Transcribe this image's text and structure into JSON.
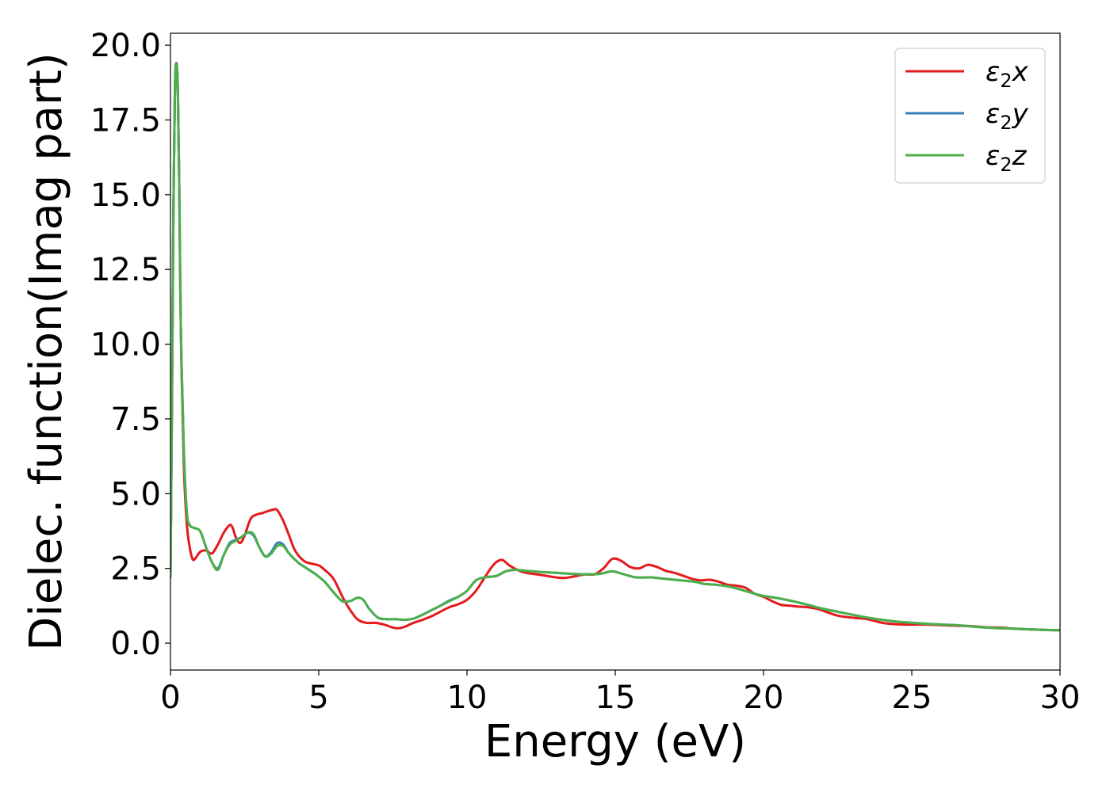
{
  "chart_data": {
    "type": "line",
    "title": "",
    "xlabel": "Energy (eV)",
    "ylabel": "Dielec. function(Imag part)",
    "xlim": [
      0,
      30
    ],
    "ylim": [
      -0.9,
      20.4
    ],
    "xticks": [
      0,
      5,
      10,
      15,
      20,
      25,
      30
    ],
    "xtick_labels": [
      "0",
      "5",
      "10",
      "15",
      "20",
      "25",
      "30"
    ],
    "yticks": [
      0.0,
      2.5,
      5.0,
      7.5,
      10.0,
      12.5,
      15.0,
      17.5,
      20.0
    ],
    "ytick_labels": [
      "0.0",
      "2.5",
      "5.0",
      "7.5",
      "10.0",
      "12.5",
      "15.0",
      "17.5",
      "20.0"
    ],
    "grid": false,
    "legend_position": "top-right",
    "series": [
      {
        "name": "ε₂x",
        "legend_base": "ε",
        "legend_sub": "2",
        "legend_suffix": "x",
        "color": "#e41a1c",
        "x": [
          0.0,
          0.05,
          0.1,
          0.15,
          0.2,
          0.25,
          0.3,
          0.35,
          0.45,
          0.55,
          0.65,
          0.75,
          0.85,
          1.0,
          1.2,
          1.4,
          1.6,
          1.8,
          2.0,
          2.1,
          2.2,
          2.35,
          2.5,
          2.7,
          2.9,
          3.1,
          3.3,
          3.5,
          3.6,
          3.8,
          4.0,
          4.2,
          4.5,
          4.8,
          5.0,
          5.2,
          5.5,
          5.8,
          6.0,
          6.3,
          6.6,
          6.9,
          7.2,
          7.5,
          7.7,
          7.9,
          8.2,
          8.5,
          8.8,
          9.1,
          9.4,
          9.7,
          10.0,
          10.3,
          10.6,
          10.8,
          11.0,
          11.2,
          11.4,
          11.7,
          12.0,
          12.5,
          13.0,
          13.3,
          13.7,
          14.0,
          14.3,
          14.6,
          14.9,
          15.2,
          15.5,
          15.8,
          16.1,
          16.4,
          16.7,
          17.0,
          17.3,
          17.6,
          17.9,
          18.2,
          18.5,
          18.8,
          19.1,
          19.4,
          19.7,
          20.0,
          20.3,
          20.6,
          20.9,
          21.2,
          21.5,
          21.8,
          22.1,
          22.5,
          23.0,
          23.5,
          24.0,
          24.5,
          25.0,
          25.5,
          26.0,
          26.5,
          27.0,
          27.5,
          28.0,
          28.5,
          29.0,
          29.5,
          30.0
        ],
        "y": [
          2.2,
          8.0,
          14.5,
          18.5,
          19.4,
          18.5,
          15.0,
          10.5,
          6.0,
          4.0,
          3.2,
          2.8,
          2.85,
          3.05,
          3.1,
          3.0,
          3.3,
          3.7,
          3.95,
          3.85,
          3.55,
          3.35,
          3.6,
          4.15,
          4.3,
          4.35,
          4.42,
          4.47,
          4.45,
          4.1,
          3.6,
          3.1,
          2.75,
          2.65,
          2.6,
          2.45,
          2.15,
          1.55,
          1.2,
          0.8,
          0.68,
          0.68,
          0.62,
          0.52,
          0.5,
          0.55,
          0.68,
          0.78,
          0.9,
          1.05,
          1.2,
          1.3,
          1.45,
          1.75,
          2.2,
          2.5,
          2.72,
          2.78,
          2.62,
          2.45,
          2.35,
          2.28,
          2.2,
          2.18,
          2.25,
          2.3,
          2.3,
          2.5,
          2.82,
          2.75,
          2.55,
          2.5,
          2.62,
          2.55,
          2.42,
          2.35,
          2.25,
          2.15,
          2.1,
          2.12,
          2.05,
          1.95,
          1.92,
          1.85,
          1.65,
          1.55,
          1.4,
          1.28,
          1.25,
          1.22,
          1.2,
          1.15,
          1.05,
          0.92,
          0.85,
          0.8,
          0.68,
          0.63,
          0.62,
          0.62,
          0.6,
          0.58,
          0.57,
          0.53,
          0.52,
          0.48,
          0.46,
          0.44,
          0.43
        ]
      },
      {
        "name": "ε₂y",
        "legend_base": "ε",
        "legend_sub": "2",
        "legend_suffix": "y",
        "color": "#377eb8",
        "x": [
          0.0,
          0.05,
          0.1,
          0.15,
          0.2,
          0.25,
          0.3,
          0.35,
          0.45,
          0.55,
          0.65,
          0.8,
          1.0,
          1.2,
          1.4,
          1.6,
          1.8,
          2.0,
          2.2,
          2.4,
          2.6,
          2.8,
          3.0,
          3.2,
          3.4,
          3.6,
          3.8,
          4.0,
          4.3,
          4.6,
          4.9,
          5.2,
          5.5,
          5.8,
          6.1,
          6.3,
          6.5,
          6.7,
          7.0,
          7.3,
          7.6,
          7.9,
          8.2,
          8.5,
          8.8,
          9.1,
          9.4,
          9.7,
          10.0,
          10.3,
          10.6,
          11.0,
          11.3,
          11.6,
          12.0,
          12.5,
          13.0,
          13.5,
          14.0,
          14.5,
          14.9,
          15.3,
          15.7,
          16.2,
          16.7,
          17.2,
          17.7,
          18.0,
          18.4,
          18.8,
          19.2,
          19.6,
          20.0,
          20.5,
          21.0,
          21.5,
          22.0,
          22.5,
          23.0,
          23.5,
          24.0,
          24.5,
          25.0,
          25.5,
          26.0,
          26.5,
          27.0,
          27.5,
          28.0,
          28.5,
          29.0,
          29.5,
          30.0
        ],
        "y": [
          2.2,
          8.0,
          14.5,
          18.5,
          19.4,
          18.5,
          15.0,
          10.5,
          6.5,
          4.4,
          3.95,
          3.85,
          3.75,
          3.2,
          2.7,
          2.5,
          2.95,
          3.35,
          3.45,
          3.55,
          3.7,
          3.6,
          3.2,
          2.9,
          3.05,
          3.35,
          3.3,
          3.0,
          2.7,
          2.5,
          2.3,
          2.05,
          1.7,
          1.4,
          1.42,
          1.52,
          1.45,
          1.15,
          0.85,
          0.8,
          0.8,
          0.78,
          0.82,
          0.95,
          1.1,
          1.25,
          1.42,
          1.55,
          1.75,
          2.1,
          2.2,
          2.25,
          2.4,
          2.45,
          2.42,
          2.38,
          2.35,
          2.32,
          2.3,
          2.32,
          2.4,
          2.3,
          2.2,
          2.2,
          2.15,
          2.1,
          2.05,
          1.98,
          1.95,
          1.9,
          1.8,
          1.68,
          1.58,
          1.5,
          1.4,
          1.28,
          1.15,
          1.05,
          0.95,
          0.85,
          0.78,
          0.72,
          0.68,
          0.65,
          0.62,
          0.6,
          0.56,
          0.52,
          0.5,
          0.48,
          0.46,
          0.44,
          0.43
        ]
      },
      {
        "name": "ε₂z",
        "legend_base": "ε",
        "legend_sub": "2",
        "legend_suffix": "z",
        "color": "#4daf4a",
        "x": [
          0.0,
          0.05,
          0.1,
          0.15,
          0.2,
          0.25,
          0.3,
          0.35,
          0.45,
          0.55,
          0.65,
          0.8,
          1.0,
          1.2,
          1.4,
          1.6,
          1.8,
          2.0,
          2.2,
          2.4,
          2.6,
          2.8,
          3.0,
          3.2,
          3.4,
          3.6,
          3.8,
          4.0,
          4.3,
          4.6,
          4.9,
          5.2,
          5.5,
          5.8,
          6.1,
          6.3,
          6.5,
          6.7,
          7.0,
          7.3,
          7.6,
          7.9,
          8.2,
          8.5,
          8.8,
          9.1,
          9.4,
          9.7,
          10.0,
          10.3,
          10.6,
          11.0,
          11.3,
          11.6,
          12.0,
          12.5,
          13.0,
          13.5,
          14.0,
          14.5,
          14.9,
          15.3,
          15.7,
          16.2,
          16.7,
          17.2,
          17.7,
          18.0,
          18.4,
          18.8,
          19.2,
          19.6,
          20.0,
          20.5,
          21.0,
          21.5,
          22.0,
          22.5,
          23.0,
          23.5,
          24.0,
          24.5,
          25.0,
          25.5,
          26.0,
          26.5,
          27.0,
          27.5,
          28.0,
          28.5,
          29.0,
          29.5,
          30.0
        ],
        "y": [
          2.2,
          8.0,
          14.5,
          18.5,
          19.35,
          18.5,
          15.0,
          10.5,
          6.5,
          4.4,
          3.95,
          3.85,
          3.75,
          3.2,
          2.7,
          2.45,
          2.95,
          3.3,
          3.42,
          3.55,
          3.7,
          3.65,
          3.2,
          2.9,
          3.0,
          3.25,
          3.25,
          3.0,
          2.7,
          2.5,
          2.3,
          2.05,
          1.7,
          1.4,
          1.42,
          1.52,
          1.45,
          1.15,
          0.85,
          0.8,
          0.8,
          0.78,
          0.82,
          0.95,
          1.1,
          1.25,
          1.4,
          1.55,
          1.75,
          2.1,
          2.2,
          2.25,
          2.4,
          2.45,
          2.42,
          2.38,
          2.35,
          2.32,
          2.3,
          2.32,
          2.4,
          2.3,
          2.2,
          2.2,
          2.15,
          2.1,
          2.05,
          1.98,
          1.95,
          1.9,
          1.8,
          1.68,
          1.58,
          1.5,
          1.4,
          1.28,
          1.15,
          1.05,
          0.95,
          0.85,
          0.78,
          0.72,
          0.68,
          0.65,
          0.62,
          0.6,
          0.56,
          0.52,
          0.5,
          0.48,
          0.46,
          0.44,
          0.43
        ]
      }
    ]
  }
}
